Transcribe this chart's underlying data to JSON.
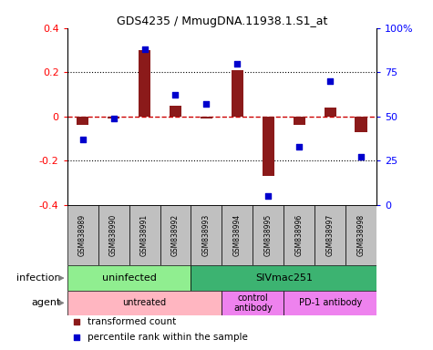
{
  "title": "GDS4235 / MmugDNA.11938.1.S1_at",
  "samples": [
    "GSM838989",
    "GSM838990",
    "GSM838991",
    "GSM838992",
    "GSM838993",
    "GSM838994",
    "GSM838995",
    "GSM838996",
    "GSM838997",
    "GSM838998"
  ],
  "transformed_count": [
    -0.04,
    -0.01,
    0.3,
    0.05,
    -0.01,
    0.21,
    -0.27,
    -0.04,
    0.04,
    -0.07
  ],
  "percentile_rank": [
    37,
    49,
    88,
    62,
    57,
    80,
    5,
    33,
    70,
    27
  ],
  "ylim": [
    -0.4,
    0.4
  ],
  "right_ylim": [
    0,
    100
  ],
  "bar_color": "#8B1A1A",
  "dot_color": "#0000CD",
  "hline_color": "#CC0000",
  "grid_color": "#000000",
  "infection_labels": [
    {
      "text": "uninfected",
      "start": 0,
      "end": 3,
      "color": "#90EE90"
    },
    {
      "text": "SIVmac251",
      "start": 4,
      "end": 9,
      "color": "#3CB371"
    }
  ],
  "agent_labels": [
    {
      "text": "untreated",
      "start": 0,
      "end": 4,
      "color": "#FFB6C1"
    },
    {
      "text": "control\nantibody",
      "start": 5,
      "end": 6,
      "color": "#EE82EE"
    },
    {
      "text": "PD-1 antibody",
      "start": 7,
      "end": 9,
      "color": "#EE82EE"
    }
  ],
  "right_yticks": [
    0,
    25,
    50,
    75,
    100
  ],
  "right_yticklabels": [
    "0",
    "25",
    "50",
    "75",
    "100%"
  ],
  "left_yticks": [
    -0.4,
    -0.2,
    0.0,
    0.2,
    0.4
  ],
  "left_yticklabels": [
    "-0.4",
    "-0.2",
    "0",
    "0.2",
    "0.4"
  ],
  "legend_items": [
    {
      "label": "transformed count",
      "color": "#8B1A1A"
    },
    {
      "label": "percentile rank within the sample",
      "color": "#0000CD"
    }
  ],
  "infection_row_label": "infection",
  "agent_row_label": "agent",
  "sample_row_color": "#C0C0C0",
  "dotted_lines": [
    -0.2,
    0.2
  ],
  "bar_width": 0.4
}
